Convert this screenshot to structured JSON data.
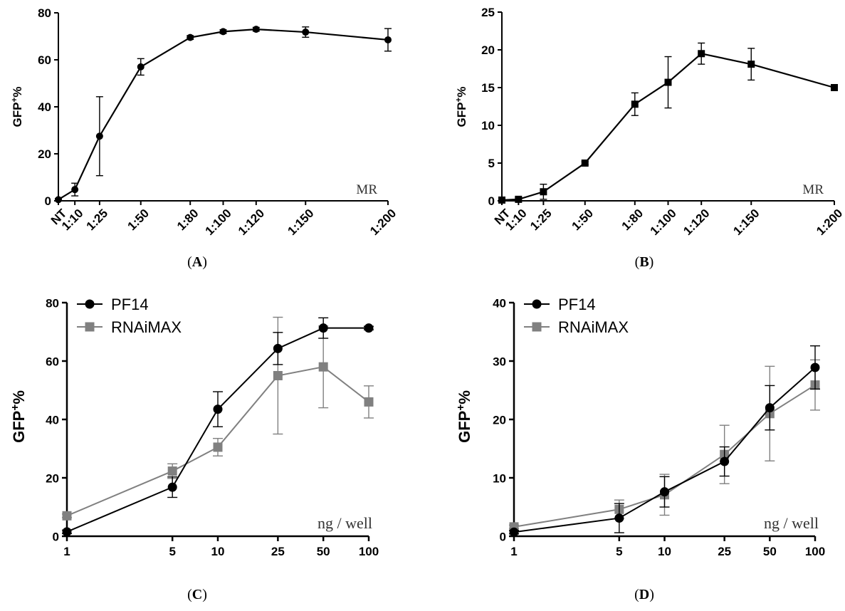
{
  "chart_data": [
    {
      "type": "line",
      "panel_label": "(A)",
      "panel_letter": "A",
      "ylabel": "GFP",
      "ylabel_sup": "+",
      "ylabel_suffix": "%",
      "xlabel": "MR",
      "x_scale": "linear",
      "categories": [
        "NT",
        "1:10",
        "1:25",
        "1:50",
        "1:80",
        "1:100",
        "1:120",
        "1:150",
        "1:200"
      ],
      "x": [
        0,
        10,
        25,
        50,
        80,
        100,
        120,
        150,
        200
      ],
      "xlim": [
        0,
        200
      ],
      "ylim": [
        0,
        80
      ],
      "yticks": [
        0,
        20,
        40,
        60,
        80
      ],
      "series": [
        {
          "name": "GFP+%",
          "color": "#000000",
          "marker": "circle",
          "values": [
            0.5,
            4.8,
            27.5,
            57,
            69.5,
            72,
            73,
            71.8,
            68.5
          ],
          "errors": [
            0.5,
            2.7,
            16.8,
            3.5,
            0.8,
            0.8,
            0.8,
            2.2,
            4.8
          ]
        }
      ]
    },
    {
      "type": "line",
      "panel_label": "(B)",
      "panel_letter": "B",
      "ylabel": "GFP",
      "ylabel_sup": "+",
      "ylabel_suffix": "%",
      "xlabel": "MR",
      "x_scale": "linear",
      "categories": [
        "NT",
        "1:10",
        "1:25",
        "1:50",
        "1:80",
        "1:100",
        "1:120",
        "1:150",
        "1:200"
      ],
      "x": [
        0,
        10,
        25,
        50,
        80,
        100,
        120,
        150,
        200
      ],
      "xlim": [
        0,
        200
      ],
      "ylim": [
        0,
        25
      ],
      "yticks": [
        0,
        5,
        10,
        15,
        20,
        25
      ],
      "series": [
        {
          "name": "GFP+%",
          "color": "#000000",
          "marker": "square",
          "values": [
            0.1,
            0.2,
            1.2,
            5,
            12.8,
            15.7,
            19.5,
            18.1,
            15
          ],
          "errors": [
            0.1,
            0.2,
            1.0,
            0.2,
            1.5,
            3.4,
            1.4,
            2.1,
            0.2
          ]
        }
      ]
    },
    {
      "type": "line",
      "panel_label": "(C)",
      "panel_letter": "C",
      "ylabel": "GFP",
      "ylabel_sup": "+",
      "ylabel_suffix": "%",
      "xlabel": "ng / well",
      "x_scale": "log",
      "categories": [
        "1",
        "5",
        "10",
        "25",
        "50",
        "100"
      ],
      "x": [
        1,
        5,
        10,
        25,
        50,
        100
      ],
      "xlim": [
        1,
        100
      ],
      "ylim": [
        0,
        80
      ],
      "yticks": [
        0,
        20,
        40,
        60,
        80
      ],
      "legend": "top-left",
      "series": [
        {
          "name": "PF14",
          "color": "#000000",
          "marker": "circle",
          "values": [
            1.5,
            16.8,
            43.5,
            64.3,
            71.3,
            71.3
          ],
          "errors": [
            0.6,
            3.5,
            6.0,
            5.5,
            3.5,
            0.6
          ]
        },
        {
          "name": "RNAiMAX",
          "color": "#808080",
          "marker": "square",
          "values": [
            7,
            22.3,
            30.5,
            55,
            58,
            46
          ],
          "errors": [
            0.6,
            2.5,
            3.0,
            20,
            14,
            5.5
          ]
        }
      ]
    },
    {
      "type": "line",
      "panel_label": "(D)",
      "panel_letter": "D",
      "ylabel": "GFP",
      "ylabel_sup": "+",
      "ylabel_suffix": "%",
      "xlabel": "ng / well",
      "x_scale": "log",
      "categories": [
        "1",
        "5",
        "10",
        "25",
        "50",
        "100"
      ],
      "x": [
        1,
        5,
        10,
        25,
        50,
        100
      ],
      "xlim": [
        1,
        100
      ],
      "ylim": [
        0,
        40
      ],
      "yticks": [
        0,
        10,
        20,
        30,
        40
      ],
      "legend": "top-left",
      "series": [
        {
          "name": "PF14",
          "color": "#000000",
          "marker": "circle",
          "values": [
            0.7,
            3.1,
            7.6,
            12.8,
            22,
            28.9
          ],
          "errors": [
            0.3,
            2.5,
            2.6,
            2.5,
            3.8,
            3.7
          ]
        },
        {
          "name": "RNAiMAX",
          "color": "#808080",
          "marker": "square",
          "values": [
            1.6,
            4.6,
            7.1,
            14,
            21,
            25.9
          ],
          "errors": [
            0.3,
            1.6,
            3.5,
            5.0,
            8.1,
            4.3
          ]
        }
      ]
    }
  ]
}
